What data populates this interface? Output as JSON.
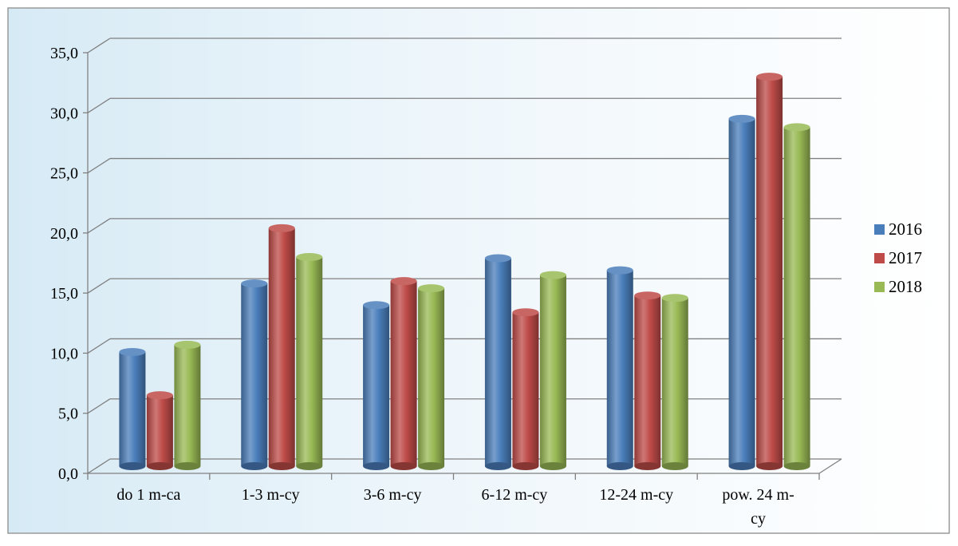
{
  "chart_data": {
    "type": "bar",
    "title": "",
    "xlabel": "",
    "ylabel": "",
    "ylim": [
      0,
      35
    ],
    "yticks": [
      "0,0",
      "5,0",
      "10,0",
      "15,0",
      "20,0",
      "25,0",
      "30,0",
      "35,0"
    ],
    "grid": true,
    "legend_position": "right",
    "categories": [
      "do 1 m-ca",
      "1-3 m-cy",
      "3-6 m-cy",
      "6-12 m-cy",
      "12-24 m-cy",
      "pow. 24 m-cy"
    ],
    "category_labels": [
      [
        "do 1 m-ca"
      ],
      [
        "1-3 m-cy"
      ],
      [
        "3-6 m-cy"
      ],
      [
        "6-12 m-cy"
      ],
      [
        "12-24 m-cy"
      ],
      [
        "pow. 24 m-",
        "cy"
      ]
    ],
    "series": [
      {
        "name": "2016",
        "color": "#4a7ebb",
        "values": [
          9.5,
          15.2,
          13.4,
          17.3,
          16.3,
          28.9
        ]
      },
      {
        "name": "2017",
        "color": "#be4b48",
        "values": [
          5.9,
          19.8,
          15.4,
          12.8,
          14.2,
          32.4
        ]
      },
      {
        "name": "2018",
        "color": "#98b954",
        "values": [
          10.1,
          17.4,
          14.8,
          15.9,
          14.0,
          28.2
        ]
      }
    ]
  }
}
